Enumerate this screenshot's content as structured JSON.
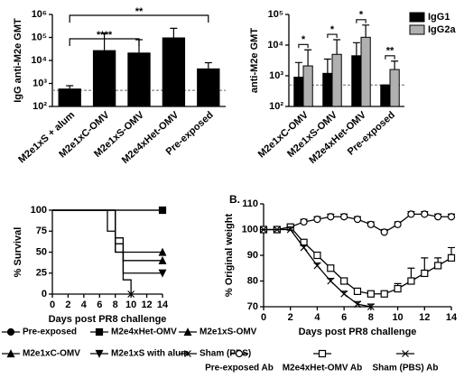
{
  "chart_data": [
    {
      "type": "bar",
      "log_y": true,
      "ylabel": "IgG anti-M2e GMT",
      "color": "#000000",
      "categories": [
        "M2e1xS + alum",
        "M2e1xC-OMV",
        "M2e1xS-OMV",
        "M2e4xHet-OMV",
        "Pre-exposed"
      ],
      "values": [
        600,
        28000,
        22000,
        100000,
        4500
      ],
      "errors": [
        200,
        122000,
        58000,
        150000,
        3500
      ],
      "reference_line": 500,
      "ylim": [
        100,
        1000000
      ],
      "yticks": [
        {
          "value": 100,
          "label": "10²"
        },
        {
          "value": 1000,
          "label": "10³"
        },
        {
          "value": 10000,
          "label": "10⁴"
        },
        {
          "value": 100000,
          "label": "10⁵"
        },
        {
          "value": 1000000,
          "label": "10⁶"
        }
      ],
      "annotations": [
        {
          "text": "****",
          "from": 0,
          "to": 2
        },
        {
          "text": "**",
          "from": 0,
          "to": 4
        }
      ]
    },
    {
      "type": "grouped-bar",
      "log_y": true,
      "ylabel": "anti-M2e GMT",
      "categories": [
        "M2e1xC-OMV",
        "M2e1xS-OMV",
        "M2e4xHet-OMV",
        "Pre-exposed"
      ],
      "series": [
        {
          "name": "IgG1",
          "color": "#000000",
          "values": [
            900,
            1200,
            4500,
            500
          ],
          "errors": [
            1800,
            2300,
            7500,
            0
          ]
        },
        {
          "name": "IgG2a",
          "color": "#b0b0b0",
          "values": [
            2100,
            5000,
            18000,
            1600
          ],
          "errors": [
            4900,
            10000,
            27000,
            1400
          ]
        }
      ],
      "significance": [
        "*",
        "*",
        "*",
        "**"
      ],
      "reference_line": 500,
      "ylim": [
        100,
        100000
      ],
      "yticks": [
        {
          "value": 100,
          "label": "10²"
        },
        {
          "value": 1000,
          "label": "10³"
        },
        {
          "value": 10000,
          "label": "10⁴"
        },
        {
          "value": 100000,
          "label": "10⁵"
        }
      ]
    },
    {
      "type": "step",
      "ylabel": "% Survival",
      "xlabel": "Days post PR8 challenge",
      "series": [
        {
          "name": "Pre-exposed",
          "marker": "circle",
          "x": [
            0,
            14
          ],
          "values": [
            100,
            100
          ]
        },
        {
          "name": "M2e4xHet-OMV",
          "marker": "square",
          "x": [
            0,
            14
          ],
          "values": [
            100,
            100
          ]
        },
        {
          "name": "M2e1xS-OMV",
          "marker": "triangle-up",
          "x": [
            0,
            8,
            8,
            9,
            9,
            14
          ],
          "values": [
            100,
            100,
            60,
            60,
            40,
            40
          ]
        },
        {
          "name": "M2e1xC-OMV",
          "marker": "triangle-up",
          "x": [
            0,
            7,
            7,
            8,
            8,
            14
          ],
          "values": [
            100,
            100,
            75,
            75,
            50,
            50
          ]
        },
        {
          "name": "M2e1xS with alum",
          "marker": "triangle-down",
          "x": [
            0,
            8,
            8,
            9,
            9,
            14
          ],
          "values": [
            100,
            100,
            50,
            50,
            25,
            25
          ]
        },
        {
          "name": "Sham (PBS)",
          "marker": "cross",
          "x": [
            0,
            8,
            8,
            9,
            9,
            10,
            10
          ],
          "values": [
            100,
            100,
            67,
            67,
            17,
            17,
            0
          ]
        }
      ],
      "xlim": [
        0,
        14
      ],
      "xticks": [
        0,
        2,
        4,
        6,
        8,
        10,
        12,
        14
      ],
      "ylim": [
        0,
        100
      ],
      "yticks": [
        0,
        25,
        50,
        75,
        100
      ]
    },
    {
      "type": "line",
      "panel_label": "B.",
      "ylabel": "% Original weight",
      "xlabel": "Days post PR8 challenge",
      "x": [
        0,
        1,
        2,
        3,
        4,
        5,
        6,
        7,
        8,
        9,
        10,
        11,
        12,
        13,
        14
      ],
      "series": [
        {
          "name": "Pre-exposed Ab",
          "marker": "circle",
          "values": [
            100,
            100,
            101,
            103,
            104,
            105,
            105,
            104,
            102,
            99,
            102,
            106,
            106,
            105,
            105
          ],
          "errors": [
            0,
            1,
            1,
            1,
            1,
            1,
            1,
            1,
            1,
            1,
            1,
            1,
            1,
            1,
            1
          ]
        },
        {
          "name": "M2e4xHet-OMV Ab",
          "marker": "square",
          "values": [
            100,
            100,
            101,
            95,
            90,
            85,
            80,
            76,
            75,
            75,
            77,
            80,
            83,
            86,
            89
          ],
          "errors": [
            0,
            0,
            1,
            1,
            1,
            1,
            1,
            1,
            1,
            1,
            2,
            5,
            6,
            3,
            4
          ]
        },
        {
          "name": "Sham (PBS) Ab",
          "marker": "cross",
          "values": [
            100,
            100,
            100,
            93,
            86,
            80,
            75,
            71,
            70,
            null,
            null,
            null,
            null,
            null,
            null
          ],
          "errors": [
            0,
            0,
            1,
            1,
            1,
            1,
            1,
            1,
            1,
            null,
            null,
            null,
            null,
            null,
            null
          ]
        }
      ],
      "xlim": [
        0,
        14
      ],
      "xticks": [
        0,
        2,
        4,
        6,
        8,
        10,
        12,
        14
      ],
      "ylim": [
        70,
        110
      ],
      "yticks": [
        70,
        80,
        90,
        100,
        110
      ]
    }
  ]
}
